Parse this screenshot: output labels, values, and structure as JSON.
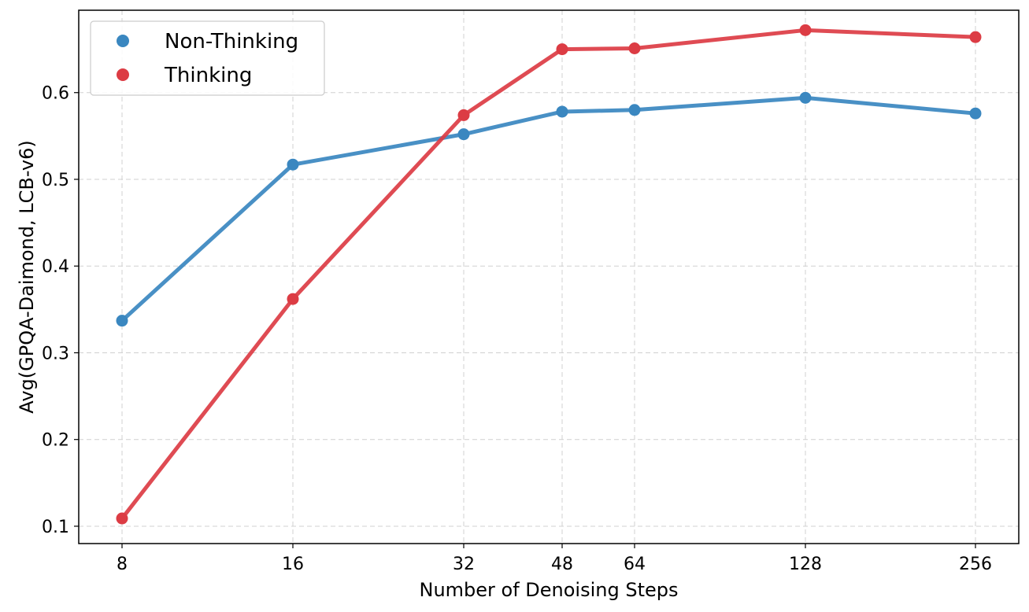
{
  "chart_data": {
    "type": "line",
    "xlabel": "Number of Denoising Steps",
    "ylabel": "Avg(GPQA-Daimond, LCB-v6)",
    "x": [
      8,
      16,
      32,
      48,
      64,
      128,
      256
    ],
    "x_tick_labels": [
      "8",
      "16",
      "32",
      "48",
      "64",
      "128",
      "256"
    ],
    "y_ticks": [
      0.1,
      0.2,
      0.3,
      0.4,
      0.5,
      0.6
    ],
    "y_tick_labels": [
      "0.1",
      "0.2",
      "0.3",
      "0.4",
      "0.5",
      "0.6"
    ],
    "ylim": [
      0.08,
      0.695
    ],
    "grid": true,
    "legend_position": "top-left",
    "series": [
      {
        "name": "Non-Thinking",
        "color": "#3a87c0",
        "values": [
          0.337,
          0.517,
          0.552,
          0.578,
          0.58,
          0.594,
          0.576
        ]
      },
      {
        "name": "Thinking",
        "color": "#dc3c44",
        "values": [
          0.109,
          0.362,
          0.574,
          0.65,
          0.651,
          0.672,
          0.664
        ]
      }
    ]
  }
}
